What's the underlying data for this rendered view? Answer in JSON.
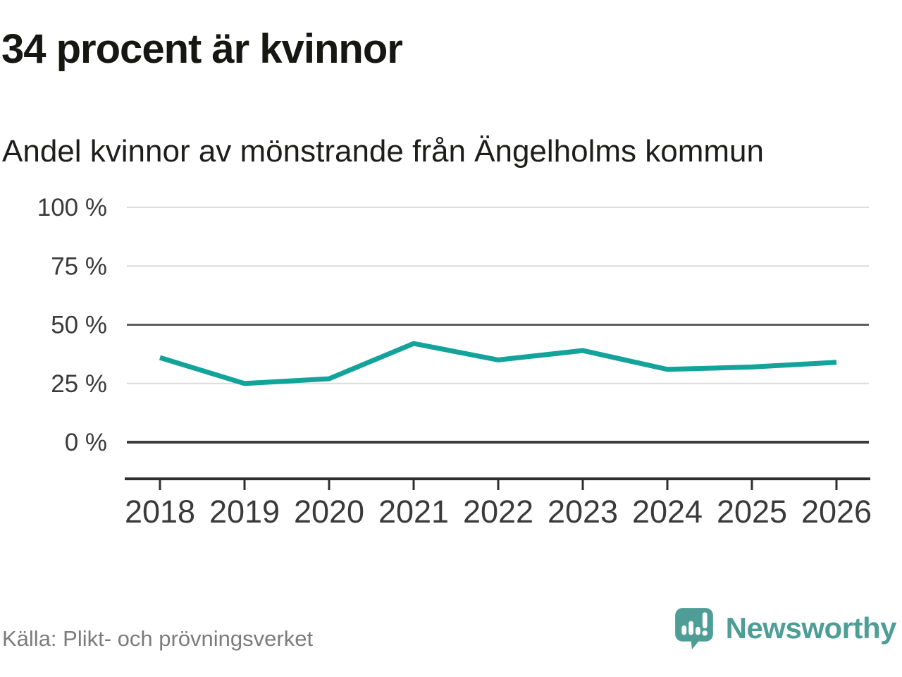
{
  "header": {
    "title": "34 procent är kvinnor",
    "subtitle": "Andel kvinnor av mönstrande från Ängelholms kommun"
  },
  "chart_data": {
    "type": "line",
    "title": "34 procent är kvinnor",
    "subtitle": "Andel kvinnor av mönstrande från Ängelholms kommun",
    "categories": [
      "2018",
      "2019",
      "2020",
      "2021",
      "2022",
      "2023",
      "2024",
      "2025",
      "2026"
    ],
    "series": [
      {
        "name": "Andel kvinnor av mönstrande",
        "values": [
          36,
          25,
          27,
          42,
          35,
          39,
          31,
          32,
          34
        ]
      }
    ],
    "unit": "%",
    "ylim": [
      0,
      100
    ],
    "yticks": [
      0,
      25,
      50,
      75,
      100
    ],
    "ytick_labels": [
      "0 %",
      "25 %",
      "50 %",
      "75 %",
      "100 %"
    ],
    "xlabel": "",
    "ylabel": "",
    "grid": "horizontal",
    "legend": "none",
    "emphasized_gridlines": [
      0,
      50
    ]
  },
  "footer": {
    "source": "Källa: Plikt- och prövningsverket",
    "brand": "Newsworthy",
    "brand_icon": "newsworthy-speech-bubble-bar-chart-icon"
  },
  "colors": {
    "accent_line": "#14a39a",
    "brand_teal": "#4e9e97",
    "grid_light": "#dcdcdc",
    "grid_mid": "#5f5f5f",
    "zero_line": "#3c3c3c",
    "axis_dark": "#2f2f2f",
    "text_title": "#161613",
    "text_axis": "#3a3a3a",
    "text_muted": "#7c7c7c"
  }
}
